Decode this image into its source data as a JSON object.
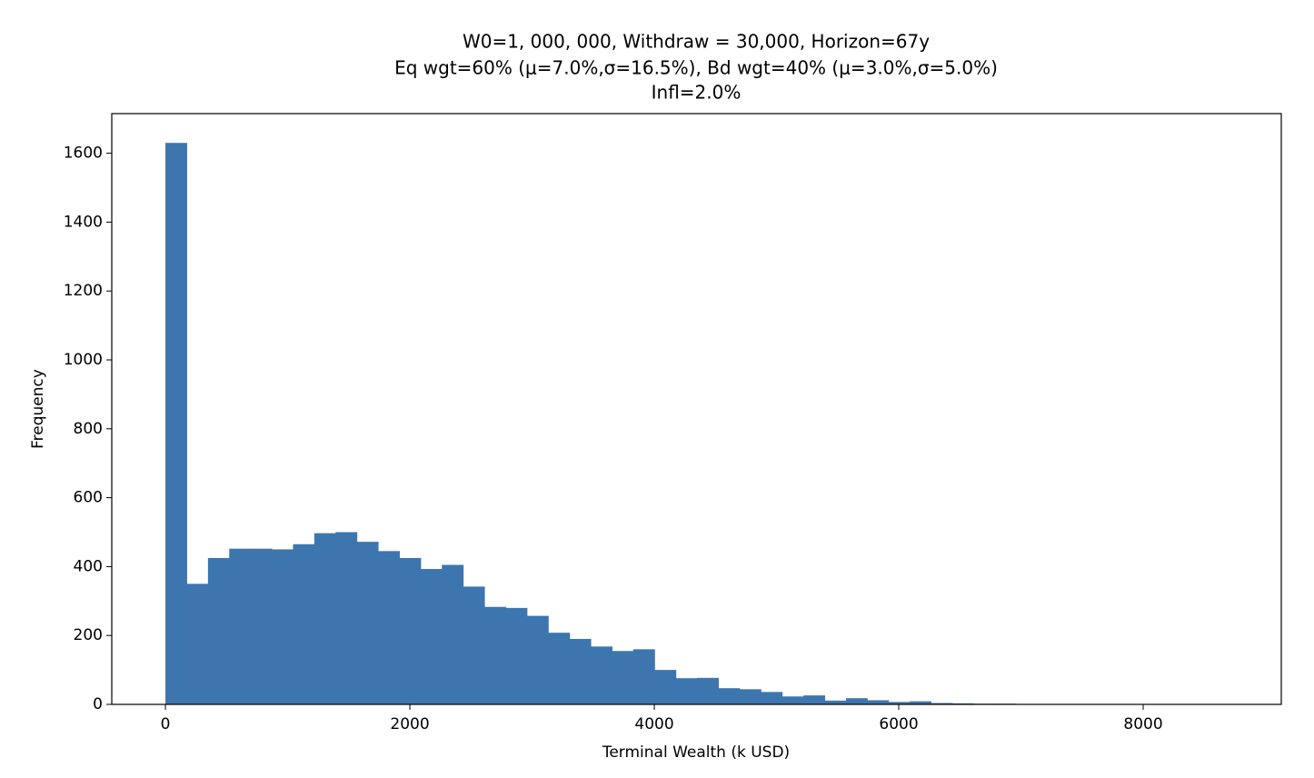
{
  "chart_data": {
    "type": "histogram",
    "title": [
      "W0=1, 000, 000, Withdraw = 30,000, Horizon=67y",
      "Eq wgt=60% (μ=7.0%,σ=16.5%), Bd wgt=40% (μ=3.0%,σ=5.0%)",
      "Infl=2.0%"
    ],
    "x_label": "Terminal Wealth (k USD)",
    "y_label": "Frequency",
    "color": "#3d76af",
    "bins": [
      0,
      174,
      348,
      522,
      696,
      870,
      1044,
      1218,
      1392,
      1566,
      1740,
      1914,
      2088,
      2262,
      2436,
      2610,
      2784,
      2958,
      3132,
      3306,
      3480,
      3654,
      3828,
      4002,
      4176,
      4350,
      4524,
      4698,
      4872,
      5046,
      5220,
      5394,
      5568,
      5742,
      5916,
      6090,
      6264,
      6438,
      6612,
      6786,
      6960,
      7134,
      7308,
      7482,
      7656,
      7830,
      8004,
      8178,
      8352,
      8526,
      8700
    ],
    "values": [
      1630,
      350,
      425,
      452,
      452,
      450,
      465,
      497,
      500,
      472,
      445,
      425,
      393,
      405,
      342,
      283,
      280,
      257,
      208,
      190,
      168,
      155,
      160,
      100,
      76,
      77,
      47,
      44,
      36,
      23,
      26,
      11,
      18,
      12,
      7,
      9,
      4,
      3,
      2,
      2,
      1,
      1,
      0,
      0,
      0,
      0,
      0,
      0,
      0,
      1
    ],
    "xlim": [
      -439,
      9130
    ],
    "ylim": [
      0,
      1715
    ],
    "xticks": [
      0,
      2000,
      4000,
      6000,
      8000
    ],
    "yticks": [
      0,
      200,
      400,
      600,
      800,
      1000,
      1200,
      1400,
      1600
    ]
  }
}
